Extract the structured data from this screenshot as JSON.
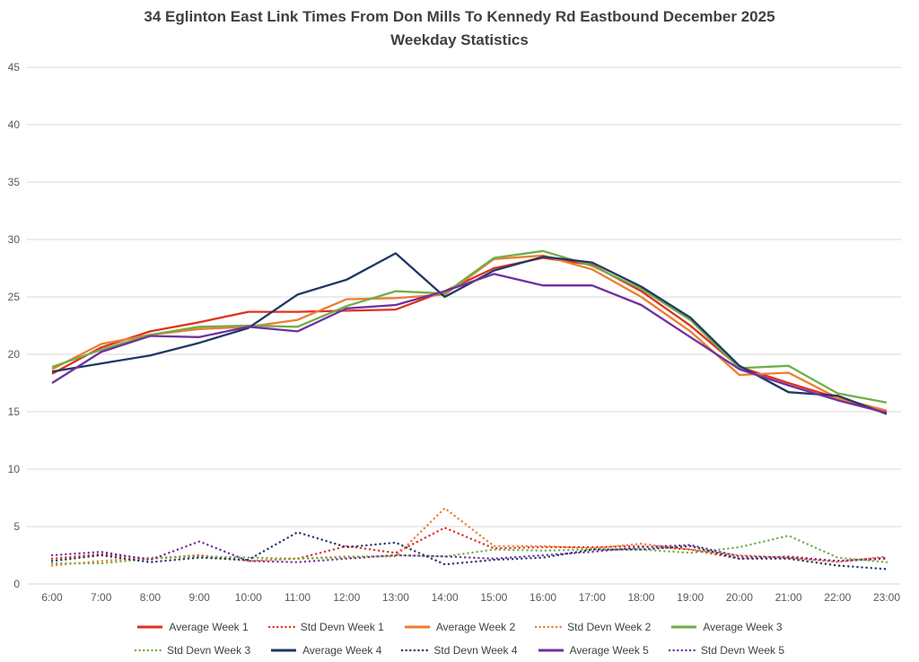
{
  "chart_data": {
    "type": "line",
    "title": "34 Eglinton East Link Times From Don Mills To Kennedy Rd Eastbound December 2025",
    "subtitle": "Weekday Statistics",
    "x": [
      "6:00",
      "7:00",
      "8:00",
      "9:00",
      "10:00",
      "11:00",
      "12:00",
      "13:00",
      "14:00",
      "15:00",
      "16:00",
      "17:00",
      "18:00",
      "19:00",
      "20:00",
      "21:00",
      "22:00",
      "23:00"
    ],
    "ylim": [
      0,
      45
    ],
    "ytick_step": 5,
    "grid": true,
    "legend_position": "bottom",
    "colors": {
      "grid": "#d9d9d9",
      "axis_text": "#595959",
      "title_text": "#404040",
      "week1": "#e0301e",
      "week2": "#ed7d31",
      "week3": "#70ad47",
      "week4": "#1f3864",
      "week5": "#7030a0"
    },
    "series": [
      {
        "name": "Average Week 1",
        "color": "#e0301e",
        "style": "solid",
        "values": [
          18.3,
          20.6,
          22.0,
          22.8,
          23.7,
          23.7,
          23.8,
          23.9,
          25.5,
          27.5,
          28.4,
          27.8,
          25.5,
          22.5,
          18.9,
          17.5,
          16.2,
          15.0
        ]
      },
      {
        "name": "Std Devn Week 1",
        "color": "#e0301e",
        "style": "dotted",
        "values": [
          2.2,
          2.6,
          2.2,
          2.5,
          2.0,
          2.2,
          3.3,
          2.7,
          4.9,
          3.1,
          3.2,
          3.2,
          3.3,
          3.0,
          2.2,
          2.4,
          2.0,
          2.3
        ]
      },
      {
        "name": "Average Week 2",
        "color": "#ed7d31",
        "style": "solid",
        "values": [
          18.7,
          20.9,
          21.7,
          22.2,
          22.4,
          23.0,
          24.8,
          24.9,
          25.2,
          28.3,
          28.6,
          27.4,
          25.0,
          22.0,
          18.2,
          18.4,
          16.2,
          15.1
        ]
      },
      {
        "name": "Std Devn Week 2",
        "color": "#ed7d31",
        "style": "dotted",
        "values": [
          1.6,
          2.0,
          2.3,
          2.4,
          2.0,
          2.2,
          2.4,
          2.4,
          6.6,
          3.3,
          3.3,
          3.1,
          3.5,
          3.0,
          2.5,
          2.3,
          1.9,
          2.4
        ]
      },
      {
        "name": "Average Week 3",
        "color": "#70ad47",
        "style": "solid",
        "values": [
          18.9,
          20.4,
          21.7,
          22.4,
          22.5,
          22.4,
          24.2,
          25.5,
          25.3,
          28.4,
          29.0,
          27.7,
          25.7,
          23.0,
          18.8,
          19.0,
          16.6,
          15.8
        ]
      },
      {
        "name": "Std Devn Week 3",
        "color": "#70ad47",
        "style": "dotted",
        "values": [
          1.8,
          1.8,
          2.2,
          2.4,
          2.3,
          2.2,
          2.3,
          2.5,
          2.4,
          3.0,
          2.9,
          3.0,
          3.0,
          2.7,
          3.2,
          4.2,
          2.3,
          1.9
        ]
      },
      {
        "name": "Average Week 4",
        "color": "#1f3864",
        "style": "solid",
        "values": [
          18.5,
          19.2,
          19.9,
          21.0,
          22.3,
          25.2,
          26.5,
          28.8,
          25.0,
          27.3,
          28.5,
          28.0,
          25.9,
          23.2,
          19.0,
          16.7,
          16.4,
          14.8
        ]
      },
      {
        "name": "Std Devn Week 4",
        "color": "#1f3864",
        "style": "dotted",
        "values": [
          2.0,
          2.5,
          1.9,
          2.3,
          2.1,
          4.5,
          3.2,
          3.6,
          1.7,
          2.1,
          2.3,
          3.0,
          3.0,
          3.3,
          2.2,
          2.2,
          1.6,
          1.3
        ]
      },
      {
        "name": "Average Week 5",
        "color": "#7030a0",
        "style": "solid",
        "values": [
          17.5,
          20.2,
          21.6,
          21.5,
          22.4,
          22.0,
          24.0,
          24.3,
          25.5,
          27.0,
          26.0,
          26.0,
          24.3,
          21.5,
          18.7,
          17.3,
          16.0,
          14.9
        ]
      },
      {
        "name": "Std Devn Week 5",
        "color": "#7030a0",
        "style": "dotted",
        "values": [
          2.5,
          2.8,
          2.1,
          3.7,
          2.0,
          1.9,
          2.2,
          2.5,
          2.4,
          2.2,
          2.5,
          2.8,
          3.2,
          3.4,
          2.4,
          2.3,
          2.0,
          2.2
        ]
      }
    ]
  }
}
